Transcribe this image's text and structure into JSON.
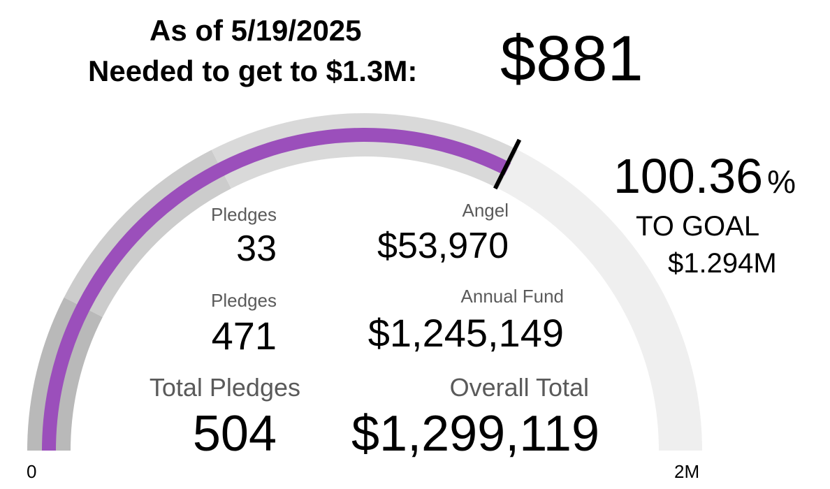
{
  "header": {
    "date_line": "As of 5/19/2025",
    "needed_line": "Needed to get to $1.3M:",
    "needed_value": "$881"
  },
  "summary": {
    "percent": "100.36",
    "percent_sign": "%",
    "to_goal_label": "TO GOAL",
    "goal_marker_label": "$1.294M"
  },
  "stats": {
    "angel_pledges_label": "Pledges",
    "angel_pledges_value": "33",
    "angel_label": "Angel",
    "angel_value": "$53,970",
    "annual_pledges_label": "Pledges",
    "annual_pledges_value": "471",
    "annual_label": "Annual Fund",
    "annual_value": "$1,245,149",
    "total_pledges_label": "Total Pledges",
    "total_pledges_value": "504",
    "overall_label": "Overall Total",
    "overall_value": "$1,299,119"
  },
  "chart_data": {
    "type": "gauge",
    "min": 0,
    "max": 2000000,
    "min_label": "0",
    "max_label": "2M",
    "value": 1299119,
    "target": 1294000,
    "bands": [
      {
        "from": 0,
        "to": 300000,
        "color": "#b9b9b9"
      },
      {
        "from": 300000,
        "to": 700000,
        "color": "#cccccc"
      },
      {
        "from": 700000,
        "to": 1300000,
        "color": "#d9d9d9"
      },
      {
        "from": 1300000,
        "to": 2000000,
        "color": "#efefef"
      }
    ],
    "value_color": "#9b4fbb",
    "target_color": "#000000"
  }
}
